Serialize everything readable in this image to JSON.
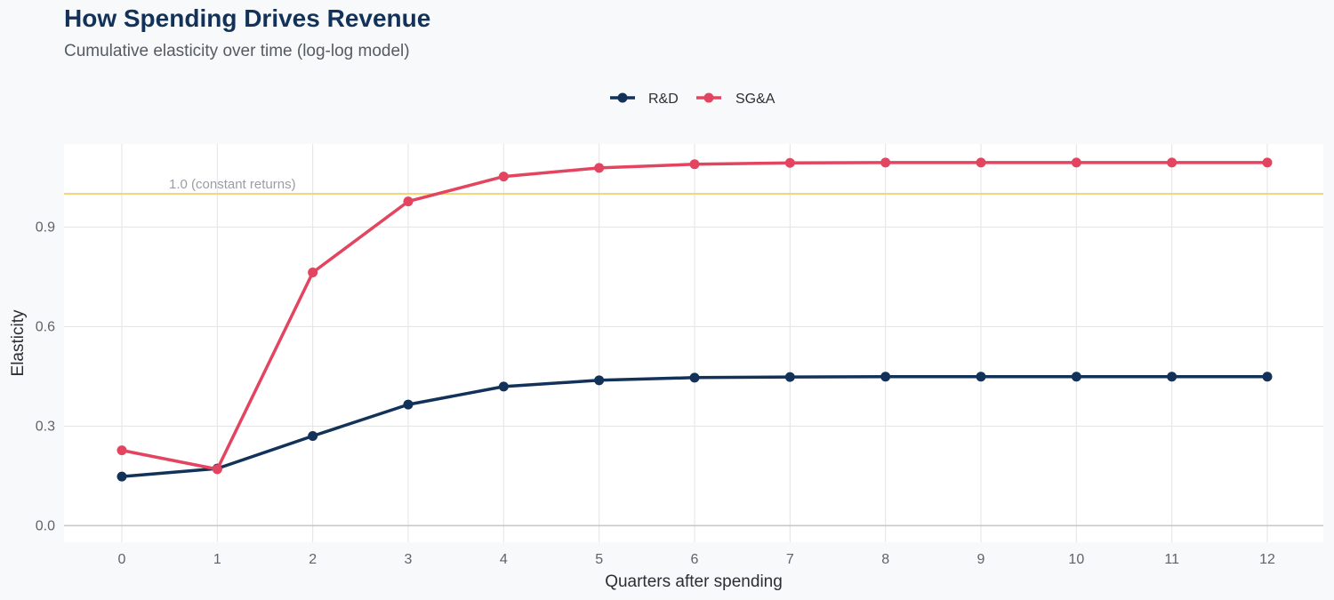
{
  "title": "How Spending Drives Revenue",
  "subtitle": "Cumulative elasticity over time (log-log model)",
  "chart_data": {
    "type": "line",
    "xlabel": "Quarters after spending",
    "ylabel": "Elasticity",
    "x": [
      0,
      1,
      2,
      3,
      4,
      5,
      6,
      7,
      8,
      9,
      10,
      11,
      12
    ],
    "xticks": [
      "0",
      "1",
      "2",
      "3",
      "4",
      "5",
      "6",
      "7",
      "8",
      "9",
      "10",
      "11",
      "12"
    ],
    "ylim": [
      -0.05,
      1.15
    ],
    "yticks": [
      0.0,
      0.3,
      0.6,
      0.9
    ],
    "ytick_labels": [
      "0.0",
      "0.3",
      "0.6",
      "0.9"
    ],
    "series": [
      {
        "name": "R&D",
        "color": "#12325a",
        "values": [
          0.148,
          0.172,
          0.27,
          0.365,
          0.419,
          0.438,
          0.446,
          0.448,
          0.449,
          0.449,
          0.449,
          0.449,
          0.449
        ]
      },
      {
        "name": "SG&A",
        "color": "#e3445f",
        "values": [
          0.227,
          0.17,
          0.763,
          0.977,
          1.052,
          1.078,
          1.089,
          1.093,
          1.094,
          1.094,
          1.094,
          1.094,
          1.094
        ]
      }
    ],
    "reference_line": {
      "value": 1.0,
      "label": "1.0 (constant returns)",
      "color": "#f6d47a"
    },
    "legend_position": "top-center",
    "grid": true
  }
}
